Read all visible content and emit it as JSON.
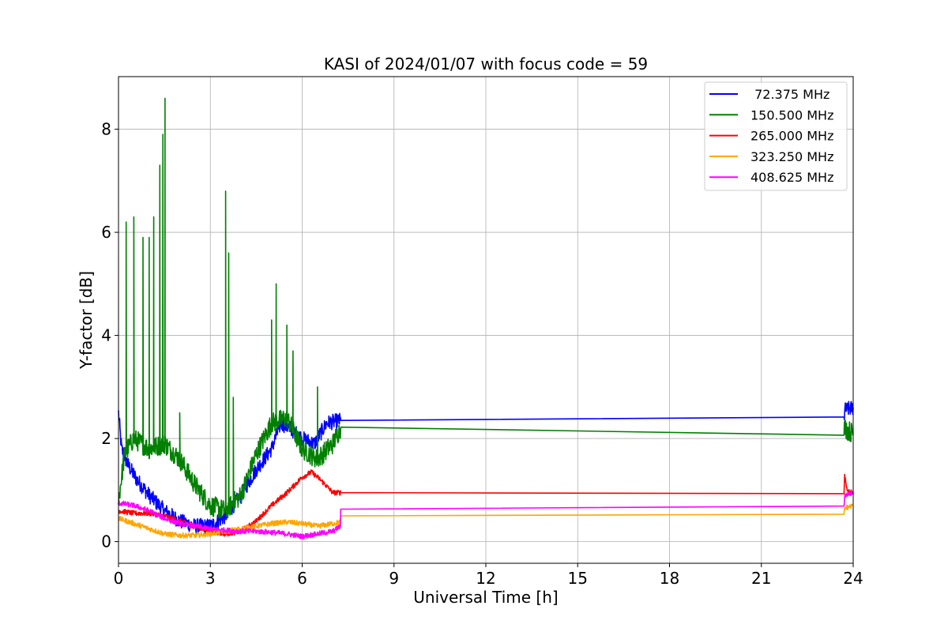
{
  "chart_data": {
    "type": "line",
    "title": "KASI of 2024/01/07 with focus code = 59",
    "xlabel": "Universal Time [h]",
    "ylabel": "Y-factor [dB]",
    "xlim": [
      0,
      24
    ],
    "ylim": [
      -0.42,
      9.02
    ],
    "xticks": [
      0,
      3,
      6,
      9,
      12,
      15,
      18,
      21,
      24
    ],
    "xtick_labels": [
      "0",
      "3",
      "6",
      "9",
      "12",
      "15",
      "18",
      "21",
      "24"
    ],
    "yticks": [
      0,
      2,
      4,
      6,
      8
    ],
    "ytick_labels": [
      "0",
      "2",
      "4",
      "6",
      "8"
    ],
    "grid": true,
    "legend_position": "top-right",
    "series": [
      {
        "name": " 72.375 MHz",
        "color": "#0000ff",
        "noise": 0.15,
        "points": [
          [
            0,
            2.5
          ],
          [
            0.1,
            1.8
          ],
          [
            0.3,
            1.5
          ],
          [
            0.6,
            1.2
          ],
          [
            1.0,
            0.9
          ],
          [
            1.5,
            0.6
          ],
          [
            2.0,
            0.4
          ],
          [
            2.5,
            0.3
          ],
          [
            3.0,
            0.3
          ],
          [
            3.5,
            0.5
          ],
          [
            4.0,
            0.9
          ],
          [
            4.5,
            1.4
          ],
          [
            5.0,
            1.8
          ],
          [
            5.3,
            2.3
          ],
          [
            5.6,
            2.2
          ],
          [
            6.0,
            2.0
          ],
          [
            6.4,
            1.9
          ],
          [
            6.8,
            2.3
          ],
          [
            7.25,
            2.35
          ],
          [
            7.26,
            2.35
          ],
          [
            23.7,
            2.35
          ],
          [
            23.72,
            2.55
          ],
          [
            24.0,
            2.6
          ]
        ]
      },
      {
        "name": "150.500 MHz",
        "color": "#008000",
        "noise": 0.2,
        "points": [
          [
            0,
            0.8
          ],
          [
            0.2,
            1.7
          ],
          [
            0.5,
            2.0
          ],
          [
            1.0,
            1.8
          ],
          [
            1.5,
            1.9
          ],
          [
            2.0,
            1.6
          ],
          [
            2.5,
            1.1
          ],
          [
            3.0,
            0.7
          ],
          [
            3.5,
            0.6
          ],
          [
            4.0,
            0.9
          ],
          [
            4.5,
            1.7
          ],
          [
            5.0,
            2.3
          ],
          [
            5.5,
            2.4
          ],
          [
            6.0,
            1.8
          ],
          [
            6.5,
            1.6
          ],
          [
            7.0,
            1.9
          ],
          [
            7.25,
            2.2
          ],
          [
            7.26,
            2.22
          ],
          [
            23.7,
            2.25
          ],
          [
            23.72,
            2.2
          ],
          [
            24.0,
            2.1
          ]
        ],
        "spikes": [
          [
            0.25,
            6.2
          ],
          [
            0.5,
            6.3
          ],
          [
            0.8,
            5.9
          ],
          [
            1.0,
            5.9
          ],
          [
            1.15,
            6.3
          ],
          [
            1.35,
            7.3
          ],
          [
            1.45,
            7.9
          ],
          [
            1.52,
            8.6
          ],
          [
            2.0,
            2.5
          ],
          [
            3.5,
            6.8
          ],
          [
            3.6,
            5.6
          ],
          [
            3.75,
            2.8
          ],
          [
            5.0,
            4.3
          ],
          [
            5.15,
            5.0
          ],
          [
            5.5,
            4.2
          ],
          [
            5.7,
            3.7
          ],
          [
            6.5,
            3.0
          ]
        ]
      },
      {
        "name": "265.000 MHz",
        "color": "#ff0000",
        "noise": 0.05,
        "points": [
          [
            0,
            0.6
          ],
          [
            0.5,
            0.55
          ],
          [
            1.0,
            0.55
          ],
          [
            1.5,
            0.5
          ],
          [
            2.0,
            0.4
          ],
          [
            2.5,
            0.3
          ],
          [
            3.0,
            0.2
          ],
          [
            3.5,
            0.15
          ],
          [
            4.0,
            0.2
          ],
          [
            4.5,
            0.4
          ],
          [
            5.0,
            0.7
          ],
          [
            5.5,
            0.95
          ],
          [
            6.0,
            1.25
          ],
          [
            6.3,
            1.35
          ],
          [
            6.6,
            1.2
          ],
          [
            7.0,
            0.95
          ],
          [
            7.25,
            0.95
          ],
          [
            7.26,
            0.95
          ],
          [
            23.7,
            0.95
          ],
          [
            23.72,
            1.3
          ],
          [
            23.8,
            1.0
          ],
          [
            24.0,
            0.95
          ]
        ]
      },
      {
        "name": "323.250 MHz",
        "color": "#ffa500",
        "noise": 0.05,
        "points": [
          [
            0,
            0.45
          ],
          [
            0.5,
            0.35
          ],
          [
            1.0,
            0.25
          ],
          [
            1.5,
            0.15
          ],
          [
            2.0,
            0.12
          ],
          [
            2.5,
            0.12
          ],
          [
            3.0,
            0.15
          ],
          [
            3.5,
            0.2
          ],
          [
            4.0,
            0.25
          ],
          [
            4.5,
            0.3
          ],
          [
            5.0,
            0.35
          ],
          [
            5.5,
            0.38
          ],
          [
            6.0,
            0.35
          ],
          [
            6.5,
            0.3
          ],
          [
            7.0,
            0.35
          ],
          [
            7.25,
            0.38
          ],
          [
            7.26,
            0.5
          ],
          [
            23.7,
            0.5
          ],
          [
            23.72,
            0.65
          ],
          [
            24.0,
            0.7
          ]
        ]
      },
      {
        "name": "408.625 MHz",
        "color": "#ff00ff",
        "noise": 0.05,
        "points": [
          [
            0,
            0.75
          ],
          [
            0.5,
            0.7
          ],
          [
            1.0,
            0.6
          ],
          [
            1.5,
            0.45
          ],
          [
            2.0,
            0.35
          ],
          [
            2.5,
            0.3
          ],
          [
            3.0,
            0.25
          ],
          [
            3.5,
            0.22
          ],
          [
            4.0,
            0.2
          ],
          [
            4.5,
            0.2
          ],
          [
            5.0,
            0.18
          ],
          [
            5.5,
            0.15
          ],
          [
            6.0,
            0.1
          ],
          [
            6.5,
            0.15
          ],
          [
            7.0,
            0.2
          ],
          [
            7.25,
            0.3
          ],
          [
            7.26,
            0.63
          ],
          [
            23.7,
            0.65
          ],
          [
            23.72,
            0.9
          ],
          [
            24.0,
            0.95
          ]
        ]
      }
    ]
  }
}
